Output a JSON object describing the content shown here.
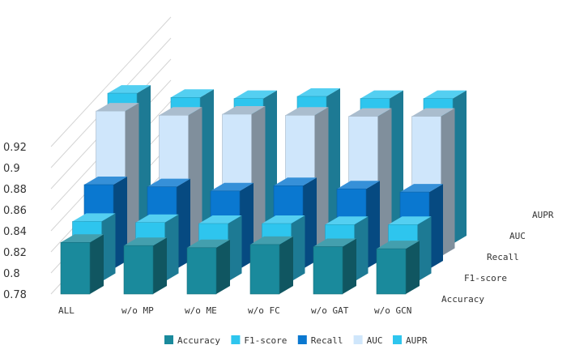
{
  "chart_data": {
    "type": "bar",
    "categories": [
      "ALL",
      "w/o MP",
      "w/o ME",
      "w/o FC",
      "w/o GAT",
      "w/o GCN"
    ],
    "series": [
      {
        "name": "Accuracy",
        "values": [
          0.829,
          0.826,
          0.824,
          0.827,
          0.825,
          0.823
        ],
        "color": "#1a8a9c"
      },
      {
        "name": "F1-score",
        "values": [
          0.837,
          0.836,
          0.835,
          0.835,
          0.834,
          0.834
        ],
        "color": "#2ec5ee"
      },
      {
        "name": "Recall",
        "values": [
          0.86,
          0.858,
          0.854,
          0.859,
          0.856,
          0.853
        ],
        "color": "#0a78d0"
      },
      {
        "name": "AUC",
        "values": [
          0.918,
          0.914,
          0.915,
          0.914,
          0.913,
          0.913
        ],
        "color": "#cfe6fb"
      },
      {
        "name": "AUPR",
        "values": [
          0.923,
          0.919,
          0.918,
          0.92,
          0.918,
          0.918
        ],
        "color": "#2ec5ee"
      }
    ],
    "y_ticks": [
      "0.78",
      "0.8",
      "0.82",
      "0.84",
      "0.86",
      "0.88",
      "0.9",
      "0.92"
    ],
    "ylim": [
      0.78,
      0.94
    ],
    "grid": true,
    "legend_position": "bottom",
    "title": "",
    "xlabel": "",
    "ylabel": ""
  }
}
